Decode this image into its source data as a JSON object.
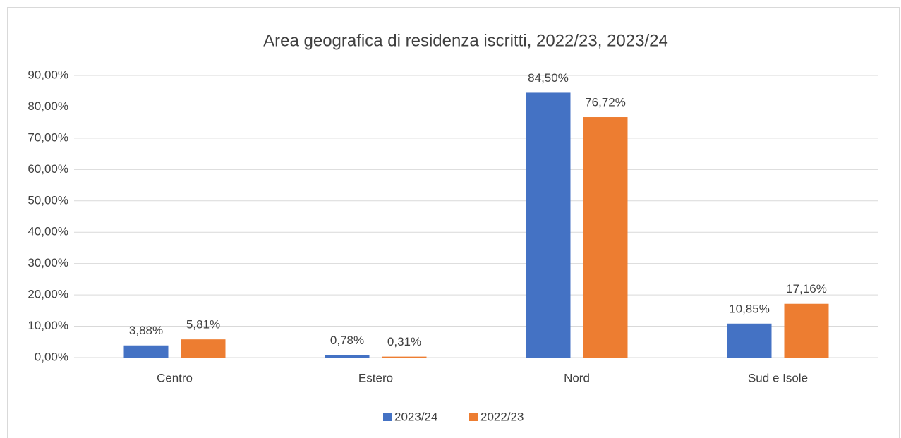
{
  "chart_data": {
    "type": "bar",
    "title": "Area geografica di residenza iscritti, 2022/23, 2023/24",
    "categories": [
      "Centro",
      "Estero",
      "Nord",
      "Sud e Isole"
    ],
    "series": [
      {
        "name": "2023/24",
        "color": "#4472c4",
        "values": [
          3.88,
          0.78,
          84.5,
          10.85
        ],
        "value_labels": [
          "3,88%",
          "0,78%",
          "84,50%",
          "10,85%"
        ]
      },
      {
        "name": "2022/23",
        "color": "#ed7d31",
        "values": [
          5.81,
          0.31,
          76.72,
          17.16
        ],
        "value_labels": [
          "5,81%",
          "0,31%",
          "76,72%",
          "17,16%"
        ]
      }
    ],
    "ylim": [
      0,
      90
    ],
    "yticks": [
      {
        "value": 0,
        "label": "0,00%"
      },
      {
        "value": 10,
        "label": "10,00%"
      },
      {
        "value": 20,
        "label": "20,00%"
      },
      {
        "value": 30,
        "label": "30,00%"
      },
      {
        "value": 40,
        "label": "40,00%"
      },
      {
        "value": 50,
        "label": "50,00%"
      },
      {
        "value": 60,
        "label": "60,00%"
      },
      {
        "value": 70,
        "label": "70,00%"
      },
      {
        "value": 80,
        "label": "80,00%"
      },
      {
        "value": 90,
        "label": "90,00%"
      }
    ],
    "grid": true,
    "legend": "bottom"
  }
}
